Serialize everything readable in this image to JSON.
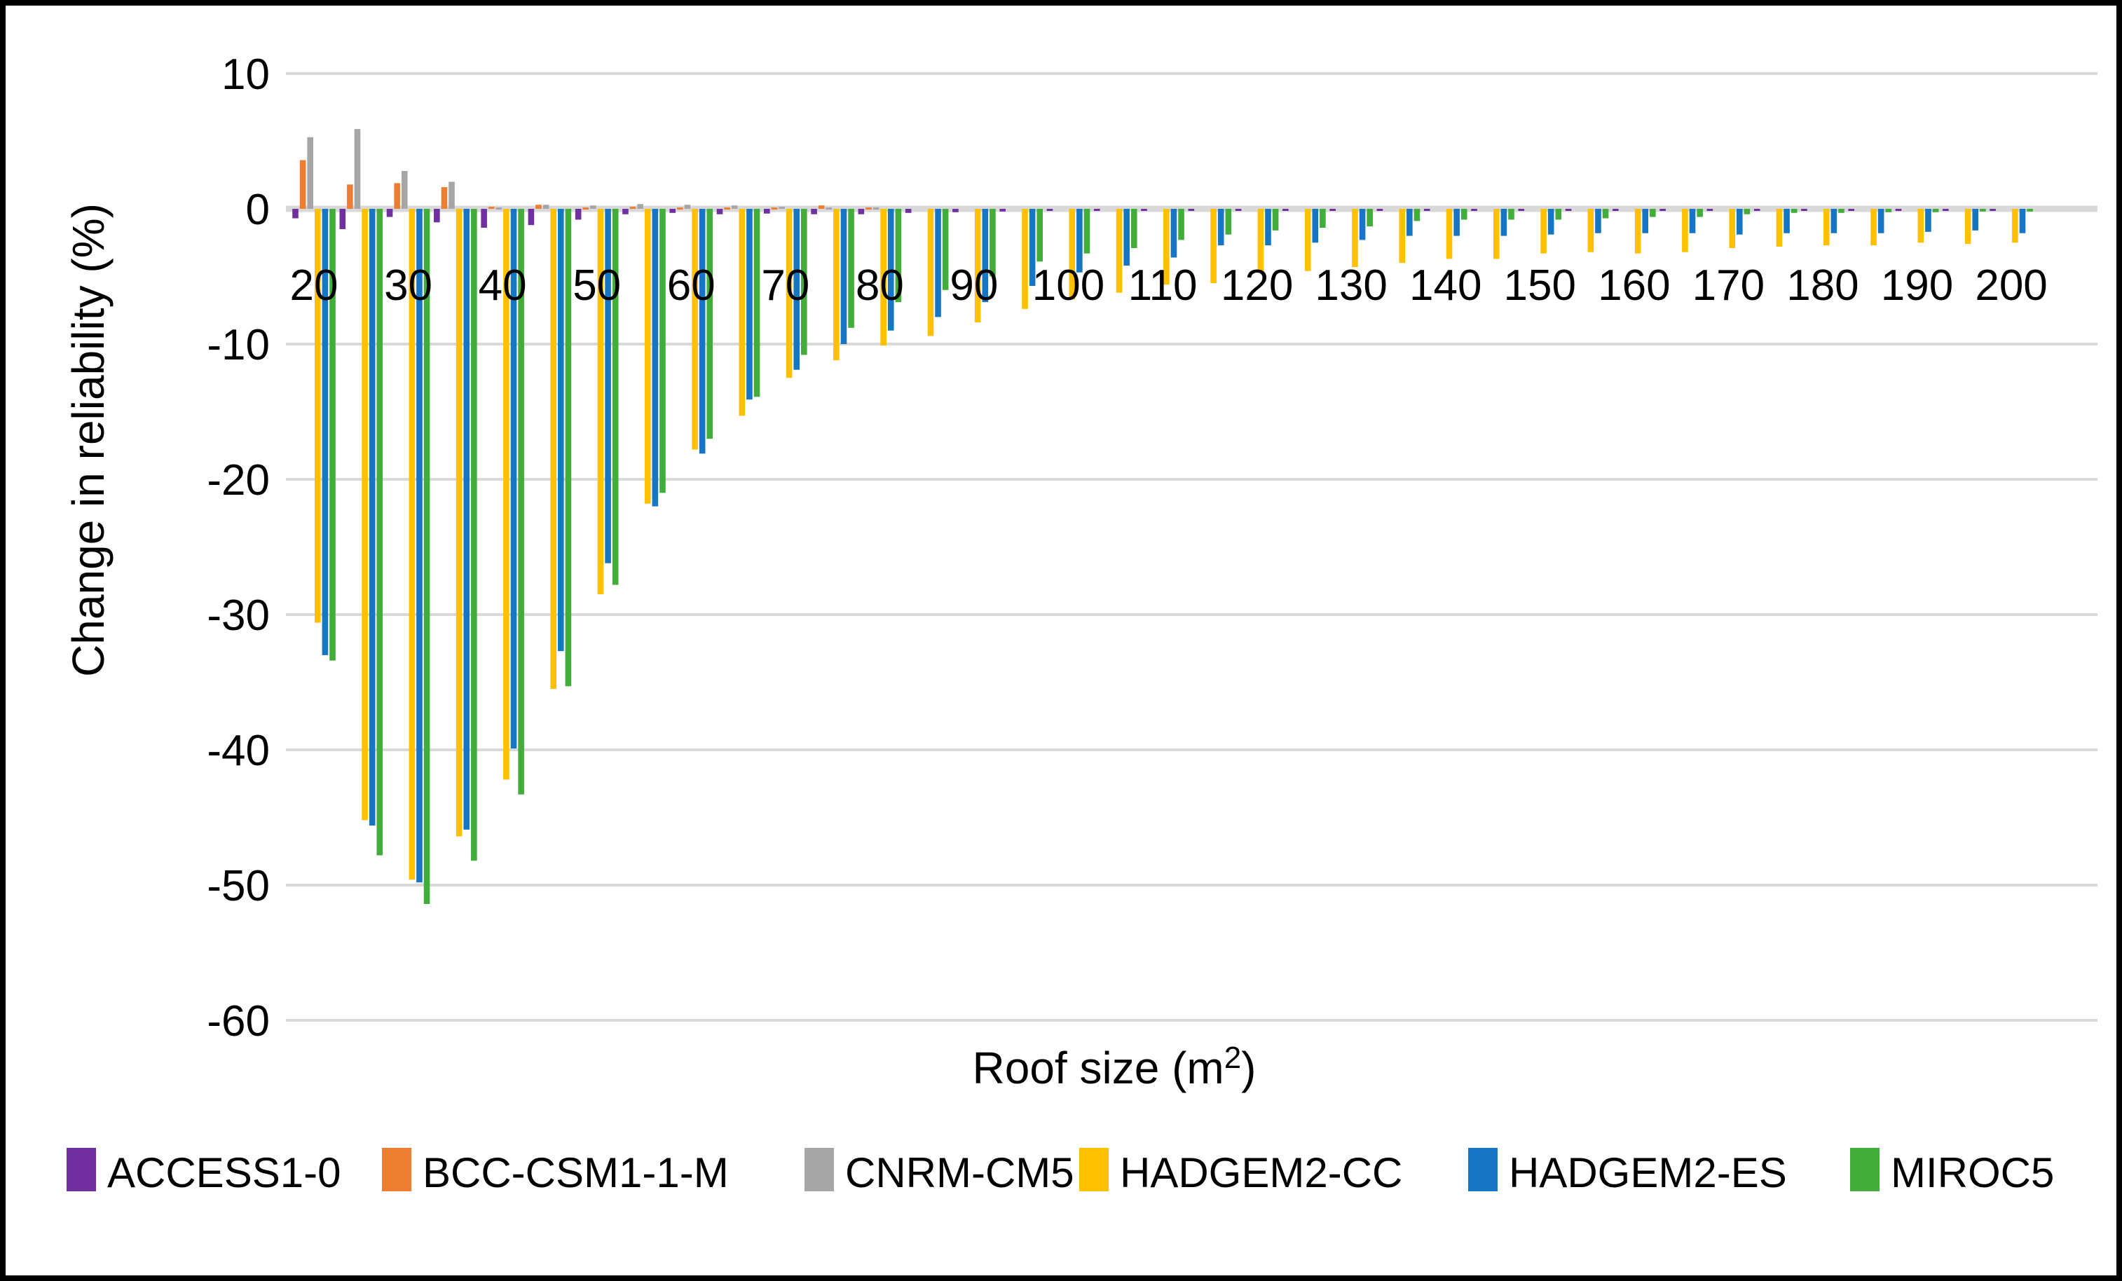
{
  "chart_data": {
    "type": "bar",
    "title": "",
    "xlabel": "Roof size (m²)",
    "xlabel_parts": {
      "prefix": "Roof size (m",
      "sup": "2",
      "suffix": ")"
    },
    "ylabel": "Change in reliability (%)",
    "ylim": [
      -62,
      12
    ],
    "y_ticks": [
      10,
      0,
      -10,
      -20,
      -30,
      -40,
      -50,
      -60
    ],
    "grid": "horizontal",
    "legend_position": "bottom",
    "x_tick_label_every": 10,
    "categories": [
      20,
      25,
      30,
      35,
      40,
      45,
      50,
      55,
      60,
      65,
      70,
      75,
      80,
      85,
      90,
      95,
      100,
      105,
      110,
      115,
      120,
      125,
      130,
      135,
      140,
      145,
      150,
      155,
      160,
      165,
      170,
      175,
      180,
      185,
      190,
      195,
      200
    ],
    "series": [
      {
        "name": "ACCESS1-0",
        "color": "#7030A0",
        "values": [
          -0.7,
          -1.5,
          -0.6,
          -1.0,
          -1.4,
          -1.2,
          -0.8,
          -0.4,
          -0.3,
          -0.4,
          -0.35,
          -0.4,
          -0.4,
          -0.3,
          -0.25,
          -0.2,
          -0.15,
          -0.1,
          -0.1,
          -0.1,
          -0.1,
          -0.1,
          -0.1,
          -0.1,
          -0.1,
          -0.1,
          -0.1,
          -0.1,
          -0.1,
          -0.1,
          -0.1,
          -0.1,
          -0.1,
          -0.1,
          -0.1,
          -0.1,
          -0.1
        ]
      },
      {
        "name": "BCC-CSM1-1-M",
        "color": "#ED7D31",
        "values": [
          3.6,
          1.8,
          1.9,
          1.6,
          0.15,
          0.3,
          0.1,
          0.15,
          0.1,
          0.1,
          0.1,
          0.25,
          0.1,
          0,
          0,
          0,
          0,
          0,
          0,
          0,
          0,
          0,
          0,
          0,
          0,
          0,
          0,
          0,
          0,
          0,
          0,
          0,
          0,
          0,
          0,
          0,
          0
        ]
      },
      {
        "name": "CNRM-CM5",
        "color": "#A6A6A6",
        "values": [
          5.3,
          5.9,
          2.8,
          2.0,
          0.1,
          0.3,
          0.25,
          0.35,
          0.3,
          0.25,
          0.15,
          0.1,
          0.1,
          0,
          0,
          0,
          0,
          0,
          0,
          0,
          0,
          0,
          0,
          0,
          0,
          0,
          0,
          0,
          0,
          0,
          0,
          0,
          0,
          0,
          0,
          0,
          0
        ]
      },
      {
        "name": "HADGEM2-CC",
        "color": "#FFC000",
        "values": [
          -30.6,
          -45.2,
          -49.6,
          -46.4,
          -42.2,
          -35.5,
          -28.5,
          -21.8,
          -17.8,
          -15.3,
          -12.5,
          -11.2,
          -10.1,
          -9.4,
          -8.4,
          -7.4,
          -6.7,
          -6.2,
          -5.6,
          -5.5,
          -4.6,
          -4.6,
          -4.3,
          -4.0,
          -3.7,
          -3.7,
          -3.3,
          -3.2,
          -3.3,
          -3.2,
          -2.9,
          -2.8,
          -2.7,
          -2.7,
          -2.5,
          -2.6,
          -2.5
        ]
      },
      {
        "name": "HADGEM2-ES",
        "color": "#1776C4",
        "values": [
          -33.0,
          -45.6,
          -49.8,
          -45.9,
          -39.9,
          -32.7,
          -26.2,
          -22.0,
          -18.1,
          -14.1,
          -11.9,
          -10.0,
          -9.0,
          -8.0,
          -6.9,
          -5.7,
          -4.7,
          -4.2,
          -3.6,
          -2.7,
          -2.7,
          -2.5,
          -2.3,
          -2.0,
          -2.0,
          -2.0,
          -1.9,
          -1.8,
          -1.8,
          -1.8,
          -1.9,
          -1.8,
          -1.8,
          -1.8,
          -1.7,
          -1.6,
          -1.8
        ]
      },
      {
        "name": "MIROC5",
        "color": "#43AD3B",
        "values": [
          -33.4,
          -47.8,
          -51.4,
          -48.2,
          -43.3,
          -35.3,
          -27.8,
          -21.0,
          -17.0,
          -13.9,
          -10.8,
          -8.8,
          -6.9,
          -6.0,
          -5.0,
          -3.9,
          -3.3,
          -2.9,
          -2.3,
          -1.9,
          -1.6,
          -1.4,
          -1.3,
          -0.9,
          -0.8,
          -0.8,
          -0.8,
          -0.7,
          -0.6,
          -0.6,
          -0.4,
          -0.3,
          -0.3,
          -0.25,
          -0.25,
          -0.2,
          -0.2
        ]
      }
    ],
    "colors": {
      "gridline": "#D9D9D9",
      "axis_line": "#D9D9D9",
      "text": "#000000",
      "border": "#000000",
      "background": "#FFFFFF"
    }
  },
  "legend": {
    "items": [
      "ACCESS1-0",
      "BCC-CSM1-1-M",
      "CNRM-CM5",
      "HADGEM2-CC",
      "HADGEM2-ES",
      "MIROC5"
    ]
  }
}
